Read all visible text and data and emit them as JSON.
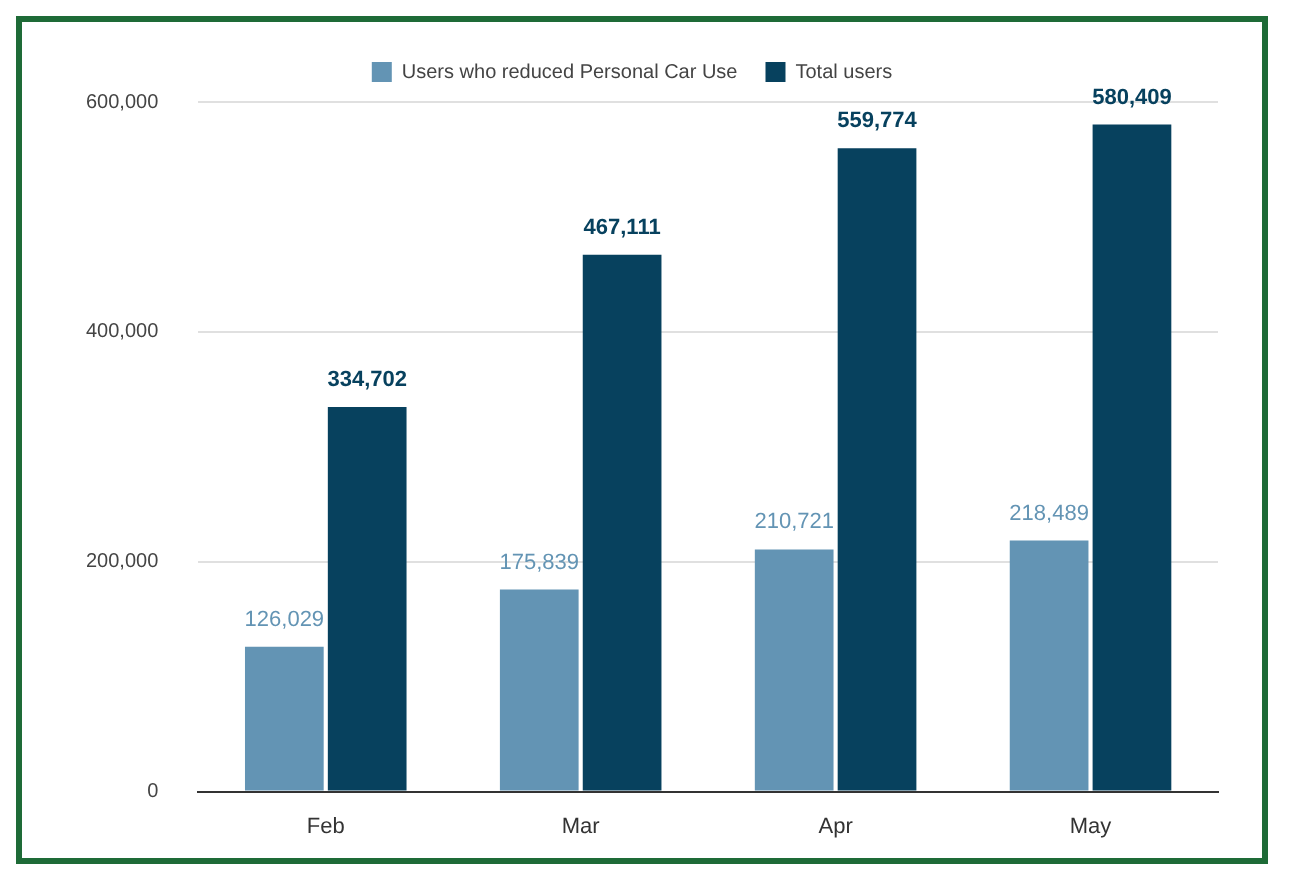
{
  "chart_data": {
    "type": "bar",
    "categories": [
      "Feb",
      "Mar",
      "Apr",
      "May"
    ],
    "series": [
      {
        "name": "Users who reduced Personal Car Use",
        "color": "#6394b4",
        "values": [
          126029,
          175839,
          210721,
          218489
        ],
        "value_labels": [
          "126,029",
          "175,839",
          "210,721",
          "218,489"
        ]
      },
      {
        "name": "Total users",
        "color": "#07415e",
        "values": [
          334702,
          467111,
          559774,
          580409
        ],
        "value_labels": [
          "334,702",
          "467,111",
          "559,774",
          "580,409"
        ]
      }
    ],
    "ylim": [
      0,
      600000
    ],
    "yticks": [
      0,
      {
        "value": 200000,
        "label": "200,000"
      },
      {
        "value": 400000,
        "label": "400,000"
      },
      {
        "value": 600000,
        "label": "600,000"
      }
    ],
    "grid": "y",
    "legend": "top"
  }
}
